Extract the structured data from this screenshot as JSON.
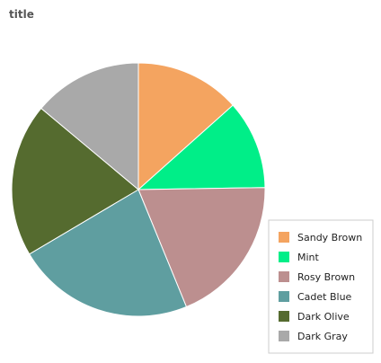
{
  "chart_data": {
    "type": "pie",
    "title": "title",
    "legend_position": "right",
    "slices": [
      {
        "label": "Sandy Brown",
        "value": 13,
        "color": "#F4A460"
      },
      {
        "label": "Mint",
        "value": 11,
        "color": "#00EE88"
      },
      {
        "label": "Rosy Brown",
        "value": 18.5,
        "color": "#BC8F8F"
      },
      {
        "label": "Cadet Blue",
        "value": 22,
        "color": "#5F9EA0"
      },
      {
        "label": "Dark Olive",
        "value": 19,
        "color": "#556B2F"
      },
      {
        "label": "Dark Gray",
        "value": 13.5,
        "color": "#A9A9A9"
      }
    ]
  }
}
